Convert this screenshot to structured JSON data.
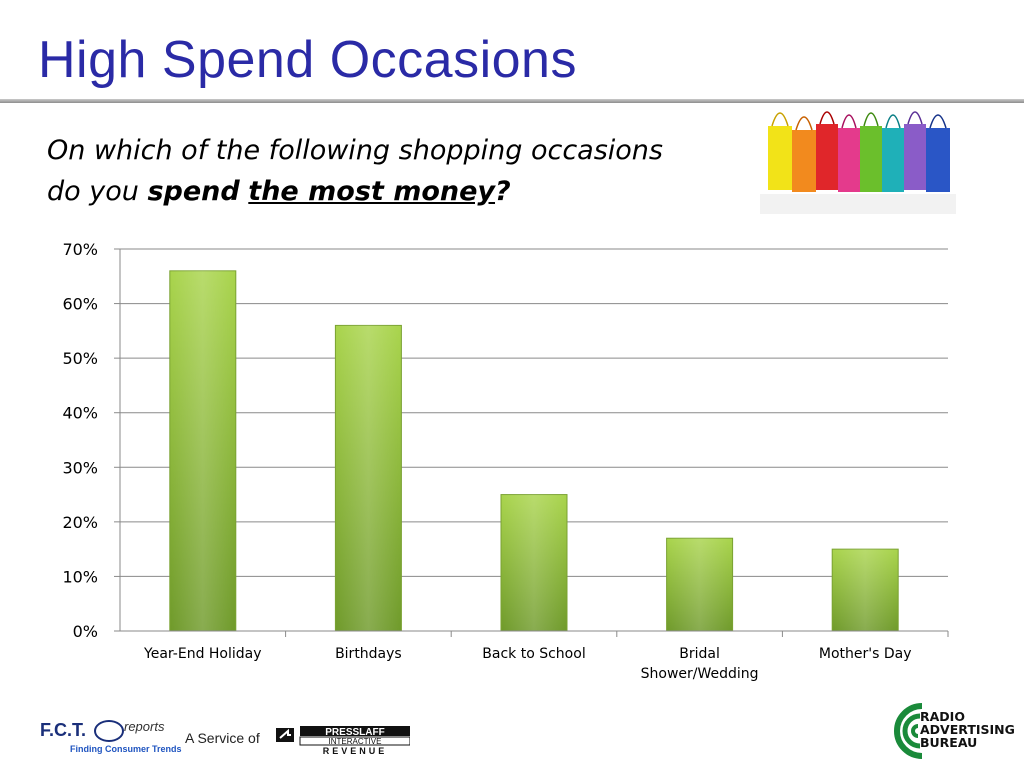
{
  "slide": {
    "title": "High Spend Occasions",
    "question_part1": "On which  of the following shopping occasions",
    "question_part2": "do you ",
    "question_bold": "spend",
    "question_space": " ",
    "question_underlined": "the most money",
    "question_end": "?"
  },
  "footer": {
    "fct": "F.C.T.",
    "fct_reports": "reports",
    "fct_tagline": "Finding Consumer Trends",
    "service_of": "A Service of",
    "press_line1": "PRESSLAFF",
    "press_line2": "INTERACTIVE",
    "press_line3": "REVENUE",
    "rab_line1": "RADIO",
    "rab_line2": "ADVERTISING",
    "rab_line3": "BUREAU"
  },
  "colors": {
    "title": "#2a2aa6",
    "bar_top": "#a9d44c",
    "bar_bottom": "#6f9a2a",
    "gridline": "#8a8a8a"
  },
  "icons": [
    "shopping-bags-image",
    "fct-magnifier-icon",
    "presslaff-arrow-icon",
    "rab-swirl-icon"
  ],
  "chart_data": {
    "type": "bar",
    "categories": [
      "Year-End Holiday",
      "Birthdays",
      "Back to School",
      "Bridal Shower/Wedding",
      "Mother's Day"
    ],
    "category_lines": [
      [
        "Year-End Holiday"
      ],
      [
        "Birthdays"
      ],
      [
        "Back to School"
      ],
      [
        "Bridal",
        "Shower/Wedding"
      ],
      [
        "Mother's Day"
      ]
    ],
    "values": [
      66,
      56,
      25,
      17,
      15
    ],
    "ylim": [
      0,
      70
    ],
    "yticks": [
      0,
      10,
      20,
      30,
      40,
      50,
      60,
      70
    ],
    "ytick_labels": [
      "0%",
      "10%",
      "20%",
      "30%",
      "40%",
      "50%",
      "60%",
      "70%"
    ],
    "grid": true,
    "legend": "none"
  }
}
